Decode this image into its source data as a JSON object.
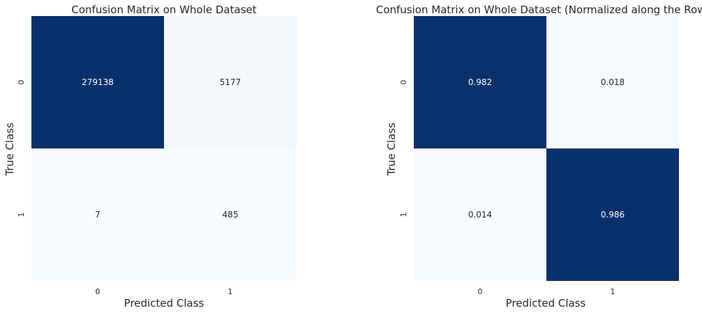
{
  "chart_data": [
    {
      "type": "heatmap",
      "title": "Confusion Matrix on Whole Dataset",
      "xlabel": "Predicted Class",
      "ylabel": "True Class",
      "x_ticks": [
        "0",
        "1"
      ],
      "y_ticks": [
        "0",
        "1"
      ],
      "values": [
        [
          279138,
          5177
        ],
        [
          7,
          485
        ]
      ],
      "labels": [
        [
          "279138",
          "5177"
        ],
        [
          "7",
          "485"
        ]
      ],
      "colormap": "Blues",
      "low_color": "#f7fbff",
      "high_color": "#08306b"
    },
    {
      "type": "heatmap",
      "title": "Confusion Matrix on Whole Dataset (Normalized along the Rows)",
      "xlabel": "Predicted Class",
      "ylabel": "True Class",
      "x_ticks": [
        "0",
        "1"
      ],
      "y_ticks": [
        "0",
        "1"
      ],
      "values": [
        [
          0.982,
          0.018
        ],
        [
          0.014,
          0.986
        ]
      ],
      "labels": [
        [
          "0.982",
          "0.018"
        ],
        [
          "0.014",
          "0.986"
        ]
      ],
      "colormap": "Blues",
      "low_color": "#f7fbff",
      "high_color": "#08306b"
    }
  ]
}
